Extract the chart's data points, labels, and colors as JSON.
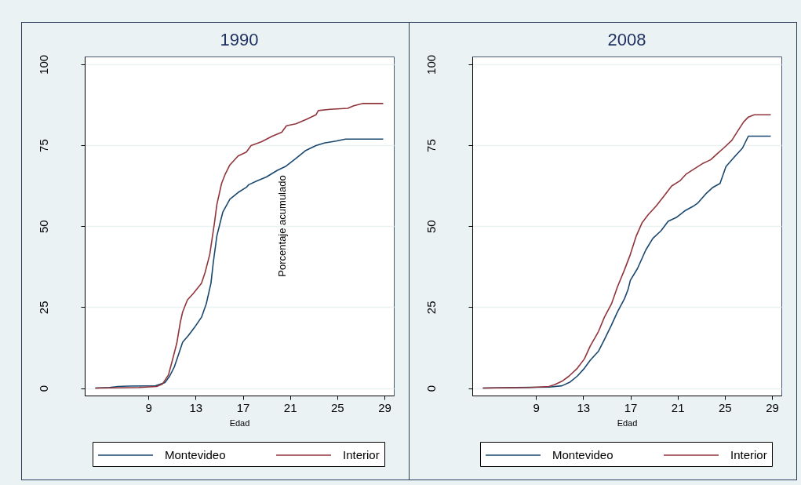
{
  "chart_data": [
    {
      "type": "line",
      "title": "1990",
      "xlabel": "Edad",
      "xlim": [
        3.6,
        29.8
      ],
      "xticks": [
        9,
        13,
        17,
        21,
        25,
        29
      ],
      "ylim": [
        -2.3,
        102.4
      ],
      "yticks": [
        0,
        25,
        50,
        75,
        100
      ],
      "grid": "y",
      "legend": "bottom",
      "annotations": [
        "Porcentaje acumulado"
      ],
      "series": [
        {
          "name": "Montevideo",
          "color": "#1a476f",
          "x": [
            4.5,
            5.7,
            6.4,
            7.2,
            9.6,
            10.4,
            10.8,
            11.2,
            11.5,
            11.9,
            12.4,
            12.9,
            13.5,
            13.9,
            14.3,
            14.5,
            14.8,
            15.3,
            15.9,
            16.6,
            17.3,
            17.5,
            18.2,
            19.0,
            19.9,
            20.6,
            21.5,
            22.3,
            23.2,
            23.9,
            24.9,
            25.7,
            28.9
          ],
          "values": [
            0,
            0.2,
            0.5,
            0.6,
            0.7,
            1.7,
            3.7,
            6.6,
            9.8,
            14.2,
            16.3,
            18.7,
            21.9,
            26.0,
            32.4,
            38.9,
            47.0,
            54.3,
            58.3,
            60.4,
            62.0,
            62.8,
            64.0,
            65.2,
            67.2,
            68.4,
            70.9,
            73.3,
            74.9,
            75.7,
            76.3,
            76.9,
            76.9
          ]
        },
        {
          "name": "Interior",
          "color": "#90353b",
          "x": [
            4.5,
            8.2,
            9.7,
            10.2,
            10.7,
            11.0,
            11.4,
            11.7,
            11.9,
            12.3,
            12.8,
            13.5,
            13.8,
            14.2,
            14.4,
            14.6,
            14.8,
            15.2,
            15.5,
            15.9,
            16.6,
            17.3,
            17.7,
            18.6,
            19.5,
            20.3,
            20.7,
            21.5,
            22.4,
            23.2,
            23.4,
            24.4,
            25.9,
            26.4,
            27.2,
            28.9
          ],
          "values": [
            0,
            0.2,
            0.5,
            1.3,
            4.1,
            8.2,
            13.8,
            20.3,
            23.5,
            27.2,
            29.2,
            32.4,
            35.7,
            41.3,
            46.2,
            51.1,
            56.7,
            63.2,
            66.0,
            68.9,
            71.7,
            72.9,
            74.9,
            76.1,
            77.8,
            79.0,
            81.0,
            81.6,
            83.0,
            84.4,
            85.7,
            86.1,
            86.4,
            87.2,
            87.9,
            87.9
          ]
        }
      ]
    },
    {
      "type": "line",
      "title": "2008",
      "xlabel": "Edad",
      "xlim": [
        3.6,
        29.8
      ],
      "xticks": [
        9,
        13,
        17,
        21,
        25,
        29
      ],
      "ylim": [
        -2.3,
        102.4
      ],
      "yticks": [
        0,
        25,
        50,
        75,
        100
      ],
      "grid": "y",
      "legend": "bottom",
      "series": [
        {
          "name": "Montevideo",
          "color": "#1a476f",
          "x": [
            4.5,
            7.2,
            10.1,
            11.2,
            11.9,
            12.5,
            13.1,
            13.6,
            14.3,
            14.8,
            15.4,
            15.9,
            16.5,
            16.8,
            17.0,
            17.6,
            18.3,
            18.9,
            19.6,
            20.2,
            20.9,
            21.6,
            22.3,
            22.7,
            23.4,
            24.0,
            24.6,
            25.1,
            25.8,
            26.5,
            27.0,
            28.9
          ],
          "values": [
            0,
            0.2,
            0.3,
            0.7,
            1.9,
            3.7,
            6.1,
            8.6,
            11.4,
            15.0,
            19.5,
            23.5,
            27.6,
            30.4,
            33.3,
            36.9,
            42.6,
            46.2,
            48.6,
            51.5,
            52.7,
            54.7,
            56.1,
            57.1,
            60.0,
            62.0,
            63.2,
            68.4,
            71.3,
            74.1,
            77.8,
            77.8
          ]
        },
        {
          "name": "Interior",
          "color": "#90353b",
          "x": [
            4.5,
            8.5,
            10.1,
            10.6,
            11.2,
            11.8,
            12.5,
            13.1,
            13.6,
            14.3,
            14.8,
            15.4,
            15.9,
            16.5,
            17.0,
            17.5,
            18.0,
            18.5,
            19.2,
            19.8,
            20.5,
            21.2,
            21.7,
            22.5,
            23.1,
            23.8,
            24.4,
            24.9,
            25.6,
            26.1,
            26.6,
            27.0,
            27.5,
            28.9
          ],
          "values": [
            0,
            0.2,
            0.5,
            1.1,
            2.1,
            3.7,
            6.1,
            9.0,
            13.0,
            17.5,
            21.9,
            26.0,
            31.2,
            36.5,
            41.3,
            47.0,
            51.1,
            53.5,
            56.3,
            59.1,
            62.4,
            64.0,
            66.0,
            67.9,
            69.3,
            70.5,
            72.5,
            74.1,
            76.5,
            79.4,
            82.2,
            83.7,
            84.4,
            84.4
          ]
        }
      ]
    }
  ]
}
